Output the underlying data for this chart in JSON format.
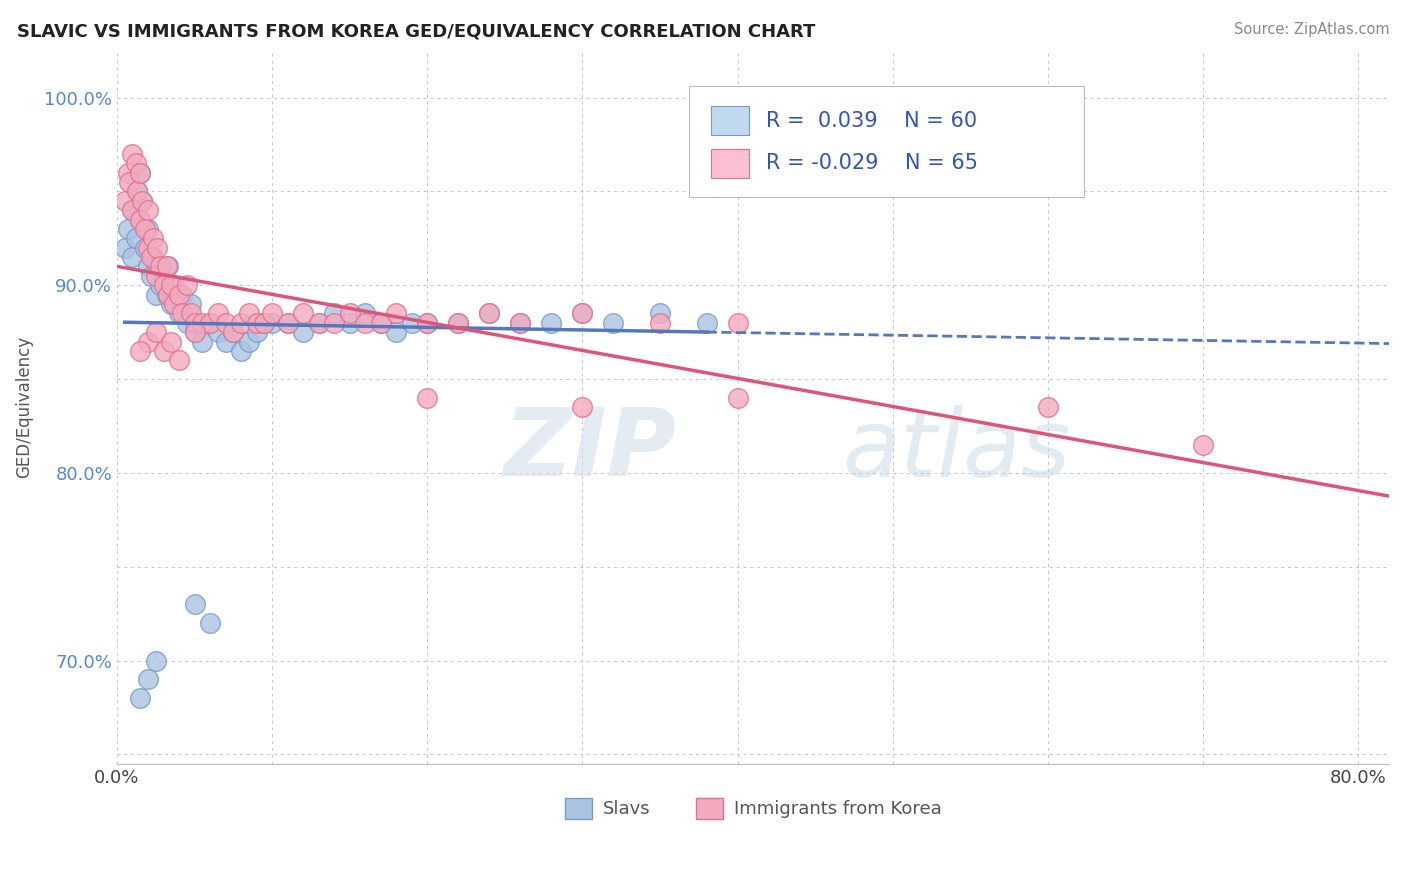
{
  "title": "SLAVIC VS IMMIGRANTS FROM KOREA GED/EQUIVALENCY CORRELATION CHART",
  "source": "Source: ZipAtlas.com",
  "ylabel_label": "GED/Equivalency",
  "R_slavs": 0.039,
  "N_slavs": 60,
  "R_korea": -0.029,
  "N_korea": 65,
  "color_slavs": "#aac4e2",
  "color_korea": "#f4aabe",
  "edge_color_slavs": "#7799cc",
  "edge_color_korea": "#e07090",
  "trend_color_slavs": "#5577bb",
  "trend_color_korea": "#dd5577",
  "legend_box_slavs": "#c0d8f0",
  "legend_box_korea": "#f8c0d0",
  "slavs_x": [
    0.005,
    0.007,
    0.01,
    0.01,
    0.012,
    0.013,
    0.015,
    0.015,
    0.016,
    0.018,
    0.02,
    0.02,
    0.022,
    0.023,
    0.025,
    0.026,
    0.028,
    0.03,
    0.032,
    0.033,
    0.035,
    0.037,
    0.04,
    0.042,
    0.045,
    0.048,
    0.05,
    0.055,
    0.06,
    0.065,
    0.07,
    0.075,
    0.08,
    0.085,
    0.09,
    0.095,
    0.1,
    0.11,
    0.12,
    0.13,
    0.14,
    0.15,
    0.16,
    0.17,
    0.18,
    0.19,
    0.2,
    0.22,
    0.24,
    0.26,
    0.28,
    0.3,
    0.32,
    0.35,
    0.38,
    0.05,
    0.06,
    0.015,
    0.02,
    0.025
  ],
  "slavs_y": [
    0.92,
    0.93,
    0.94,
    0.915,
    0.925,
    0.95,
    0.935,
    0.96,
    0.945,
    0.92,
    0.91,
    0.93,
    0.905,
    0.915,
    0.895,
    0.91,
    0.9,
    0.905,
    0.895,
    0.91,
    0.89,
    0.9,
    0.885,
    0.895,
    0.88,
    0.89,
    0.875,
    0.87,
    0.88,
    0.875,
    0.87,
    0.875,
    0.865,
    0.87,
    0.875,
    0.88,
    0.88,
    0.88,
    0.875,
    0.88,
    0.885,
    0.88,
    0.885,
    0.88,
    0.875,
    0.88,
    0.88,
    0.88,
    0.885,
    0.88,
    0.88,
    0.885,
    0.88,
    0.885,
    0.88,
    0.73,
    0.72,
    0.68,
    0.69,
    0.7
  ],
  "korea_x": [
    0.005,
    0.007,
    0.008,
    0.01,
    0.01,
    0.012,
    0.013,
    0.015,
    0.015,
    0.016,
    0.018,
    0.02,
    0.02,
    0.022,
    0.023,
    0.025,
    0.026,
    0.028,
    0.03,
    0.032,
    0.033,
    0.035,
    0.037,
    0.04,
    0.042,
    0.045,
    0.048,
    0.05,
    0.055,
    0.06,
    0.065,
    0.07,
    0.075,
    0.08,
    0.085,
    0.09,
    0.095,
    0.1,
    0.11,
    0.12,
    0.13,
    0.14,
    0.15,
    0.16,
    0.17,
    0.18,
    0.2,
    0.22,
    0.24,
    0.26,
    0.3,
    0.35,
    0.4,
    0.02,
    0.025,
    0.03,
    0.015,
    0.035,
    0.04,
    0.05,
    0.2,
    0.3,
    0.4,
    0.6,
    0.7
  ],
  "korea_y": [
    0.945,
    0.96,
    0.955,
    0.97,
    0.94,
    0.965,
    0.95,
    0.935,
    0.96,
    0.945,
    0.93,
    0.92,
    0.94,
    0.915,
    0.925,
    0.905,
    0.92,
    0.91,
    0.9,
    0.91,
    0.895,
    0.9,
    0.89,
    0.895,
    0.885,
    0.9,
    0.885,
    0.88,
    0.88,
    0.88,
    0.885,
    0.88,
    0.875,
    0.88,
    0.885,
    0.88,
    0.88,
    0.885,
    0.88,
    0.885,
    0.88,
    0.88,
    0.885,
    0.88,
    0.88,
    0.885,
    0.88,
    0.88,
    0.885,
    0.88,
    0.885,
    0.88,
    0.88,
    0.87,
    0.875,
    0.865,
    0.865,
    0.87,
    0.86,
    0.875,
    0.84,
    0.835,
    0.84,
    0.835,
    0.815
  ],
  "xlim": [
    0.0,
    0.82
  ],
  "ylim": [
    0.645,
    1.025
  ],
  "x_ticks": [
    0.0,
    0.1,
    0.2,
    0.3,
    0.4,
    0.5,
    0.6,
    0.7,
    0.8
  ],
  "x_tick_labels": [
    "0.0%",
    "",
    "",
    "",
    "",
    "",
    "",
    "",
    "80.0%"
  ],
  "y_ticks": [
    0.65,
    0.7,
    0.75,
    0.8,
    0.85,
    0.9,
    0.95,
    1.0
  ],
  "y_tick_labels": [
    "",
    "70.0%",
    "",
    "80.0%",
    "",
    "90.0%",
    "",
    "100.0%"
  ],
  "watermark_zip": "ZIP",
  "watermark_atlas": "atlas"
}
